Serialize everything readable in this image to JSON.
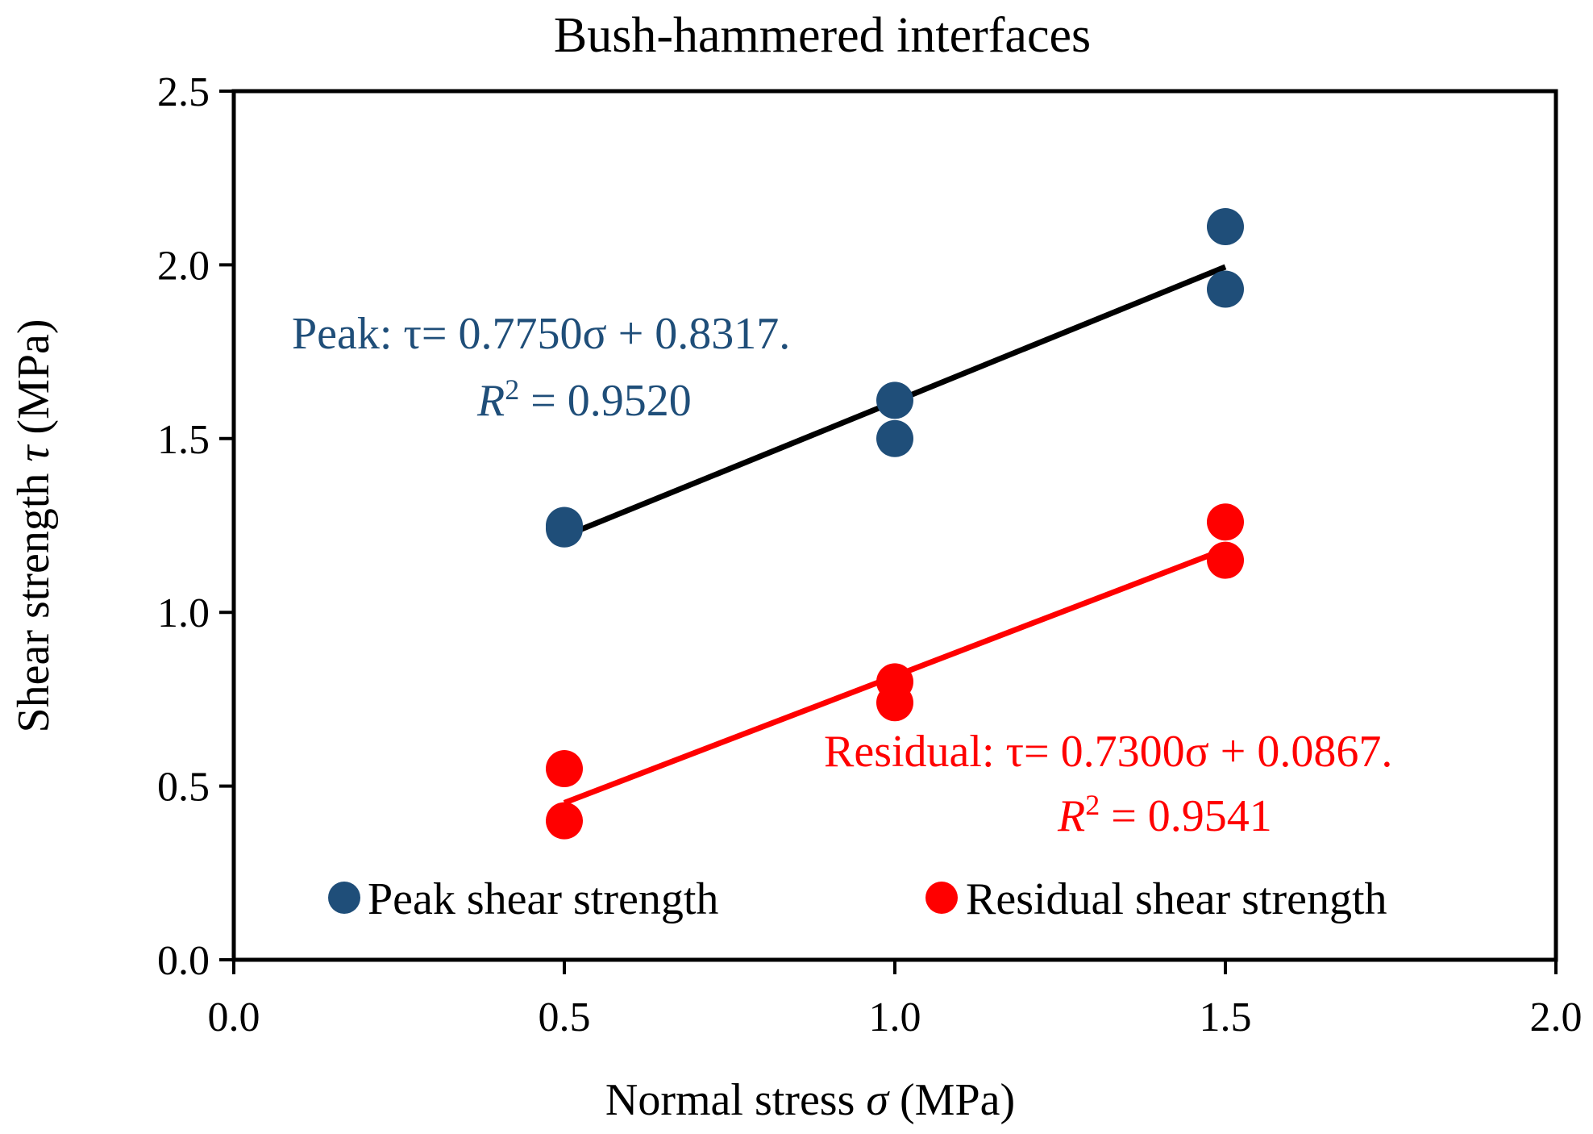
{
  "chart_data": {
    "type": "scatter",
    "title": "Bush-hammered interfaces",
    "xlabel": "Normal stress",
    "xlabel_symbol": "σ",
    "xlabel_unit": "(MPa)",
    "ylabel": "Shear strength",
    "ylabel_symbol": "τ",
    "ylabel_unit": "(MPa)",
    "xlim": [
      0.0,
      2.0
    ],
    "ylim": [
      0.0,
      2.5
    ],
    "xticks": [
      "0.0",
      "0.5",
      "1.0",
      "1.5",
      "2.0"
    ],
    "yticks": [
      "0.0",
      "0.5",
      "1.0",
      "1.5",
      "2.0",
      "2.5"
    ],
    "legend_position": "bottom",
    "series": [
      {
        "name": "Peak shear strength",
        "color": "#1f4e79",
        "x": [
          0.5,
          0.5,
          1.0,
          1.0,
          1.5,
          1.5
        ],
        "y": [
          1.24,
          1.25,
          1.5,
          1.61,
          1.93,
          2.11
        ],
        "trendline": {
          "color": "#000000",
          "slope": 0.775,
          "intercept": 0.8317,
          "x_range": [
            0.5,
            1.5
          ],
          "equation": "Peak: τ= 0.7750σ + 0.8317.",
          "r2_label": "R",
          "r2_text": " = 0.9520"
        }
      },
      {
        "name": "Residual shear strength",
        "color": "#ff0000",
        "x": [
          0.5,
          0.5,
          1.0,
          1.0,
          1.5,
          1.5
        ],
        "y": [
          0.55,
          0.4,
          0.8,
          0.74,
          1.26,
          1.15
        ],
        "trendline": {
          "color": "#ff0000",
          "slope": 0.73,
          "intercept": 0.0867,
          "x_range": [
            0.5,
            1.5
          ],
          "equation": "Residual: τ= 0.7300σ + 0.0867.",
          "r2_label": "R",
          "r2_text": " = 0.9541"
        }
      }
    ]
  }
}
